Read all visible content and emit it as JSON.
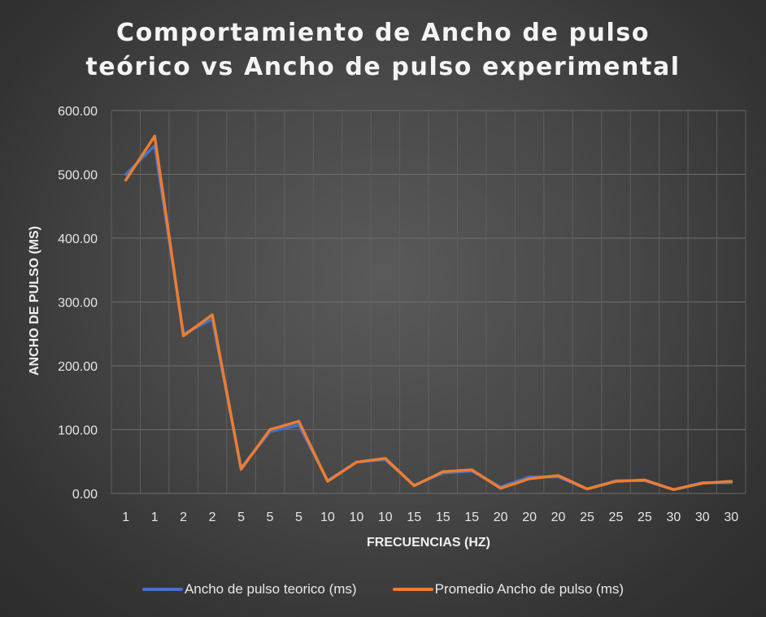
{
  "chart_data": {
    "type": "line",
    "title_lines": [
      "Comportamiento de Ancho de pulso",
      "teórico vs Ancho de pulso experimental"
    ],
    "xlabel": "FRECUENCIAS (HZ)",
    "ylabel": "ANCHO DE PULSO (MS)",
    "categories": [
      "1",
      "1",
      "2",
      "2",
      "5",
      "5",
      "5",
      "10",
      "10",
      "10",
      "15",
      "15",
      "15",
      "20",
      "20",
      "20",
      "25",
      "25",
      "25",
      "30",
      "30",
      "30"
    ],
    "ylim": [
      0,
      600
    ],
    "yticks": [
      0,
      100,
      200,
      300,
      400,
      500,
      600
    ],
    "ytick_labels": [
      "0.00",
      "100.00",
      "200.00",
      "300.00",
      "400.00",
      "500.00",
      "600.00"
    ],
    "grid": true,
    "legend_position": "bottom",
    "series": [
      {
        "name": "Ancho de pulso teorico (ms)",
        "color": "#4472c4",
        "values": [
          500,
          545,
          250,
          273,
          40,
          97,
          107,
          20,
          49,
          53,
          13,
          32,
          35,
          10,
          26,
          26,
          7,
          20,
          20,
          6,
          17,
          17
        ]
      },
      {
        "name": "Promedio Ancho de pulso (ms)",
        "color": "#ed7d31",
        "values": [
          491,
          560,
          247,
          280,
          38,
          100,
          113,
          19,
          49,
          55,
          12,
          34,
          37,
          8,
          23,
          28,
          7,
          19,
          21,
          6,
          16,
          19
        ]
      }
    ]
  }
}
